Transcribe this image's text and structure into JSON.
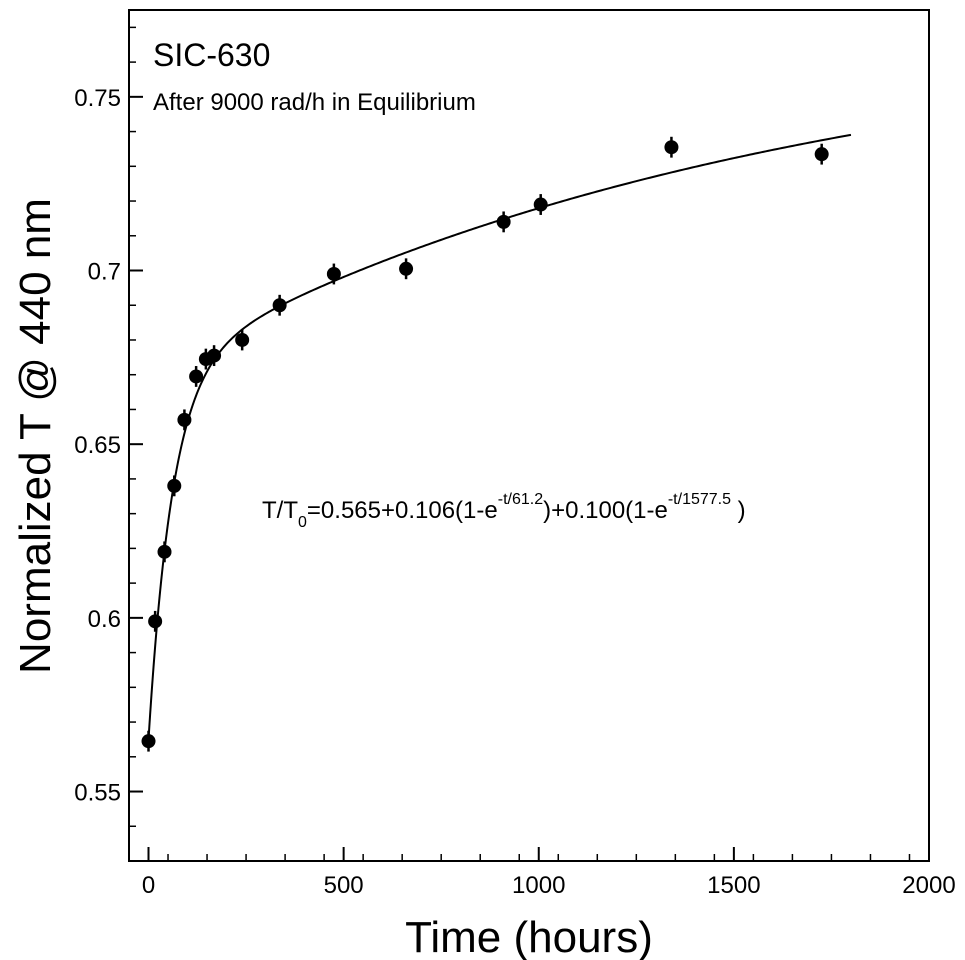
{
  "chart_data": {
    "type": "scatter",
    "title": "SIC-630",
    "subtitle": "After 9000 rad/h in Equilibrium",
    "xlabel": "Time (hours)",
    "ylabel": "Normalized T @ 440 nm",
    "xlim": [
      -50,
      2000
    ],
    "ylim": [
      0.53,
      0.775
    ],
    "xticks": [
      0,
      500,
      1000,
      1500,
      2000
    ],
    "xtick_labels": [
      "0",
      "500",
      "1000",
      "1500",
      "2000"
    ],
    "yticks": [
      0.55,
      0.6,
      0.65,
      0.7,
      0.75
    ],
    "ytick_labels": [
      "0.55",
      "0.6",
      "0.65",
      "0.7",
      "0.75"
    ],
    "grid": false,
    "series": [
      {
        "x": [
          0,
          17,
          41,
          66,
          92,
          122,
          147,
          168,
          240,
          336,
          475,
          660,
          910,
          1005,
          1340,
          1725
        ],
        "y": [
          0.5645,
          0.599,
          0.619,
          0.638,
          0.657,
          0.6695,
          0.6745,
          0.6755,
          0.68,
          0.69,
          0.699,
          0.7005,
          0.714,
          0.719,
          0.7355,
          0.7335
        ],
        "yerr": [
          0.003,
          0.003,
          0.003,
          0.003,
          0.003,
          0.003,
          0.003,
          0.003,
          0.003,
          0.003,
          0.003,
          0.003,
          0.003,
          0.003,
          0.003,
          0.003
        ]
      }
    ],
    "fit": {
      "a": 0.565,
      "b1": 0.106,
      "tau1": 61.2,
      "b2": 0.1,
      "tau2": 1577.5,
      "x_range": [
        0,
        1800
      ]
    },
    "annotation": {
      "lhs": "T/T",
      "lhs_sub": "0",
      "part1": "=0.565+0.106(1-e",
      "sup1": "-t/61.2",
      "part2": ")+0.100(1-e",
      "sup2": "-t/1577.5",
      "part3": " )"
    }
  }
}
